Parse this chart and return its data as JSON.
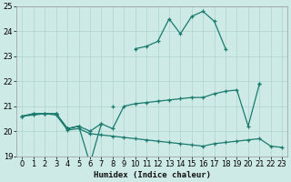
{
  "xlabel": "Humidex (Indice chaleur)",
  "x": [
    0,
    1,
    2,
    3,
    4,
    5,
    6,
    7,
    8,
    9,
    10,
    11,
    12,
    13,
    14,
    15,
    16,
    17,
    18,
    19,
    20,
    21,
    22,
    23
  ],
  "line_top": [
    20.6,
    20.7,
    20.7,
    20.7,
    20.1,
    20.2,
    null,
    null,
    21.0,
    null,
    23.3,
    23.4,
    23.6,
    24.5,
    23.9,
    24.6,
    24.8,
    24.4,
    23.3,
    null,
    null,
    21.9,
    null,
    null
  ],
  "line_mid": [
    20.6,
    20.7,
    20.7,
    20.7,
    20.1,
    20.2,
    20.0,
    20.3,
    20.1,
    21.0,
    21.1,
    21.15,
    21.2,
    21.25,
    21.3,
    21.35,
    21.35,
    21.5,
    21.6,
    21.65,
    20.2,
    21.9,
    null,
    null
  ],
  "line_bot": [
    20.6,
    20.65,
    20.7,
    20.65,
    20.05,
    20.1,
    19.9,
    19.85,
    19.8,
    19.75,
    19.7,
    19.65,
    19.6,
    19.55,
    19.5,
    19.45,
    19.4,
    19.5,
    19.55,
    19.6,
    19.65,
    19.7,
    19.4,
    19.35
  ],
  "line_dip": [
    null,
    null,
    null,
    20.7,
    20.1,
    20.2,
    18.7,
    20.3,
    null,
    null,
    null,
    null,
    null,
    null,
    null,
    null,
    null,
    null,
    null,
    null,
    null,
    null,
    null,
    null
  ],
  "ylim": [
    19,
    25
  ],
  "xlim": [
    -0.5,
    23.5
  ],
  "yticks": [
    19,
    20,
    21,
    22,
    23,
    24,
    25
  ],
  "xticks": [
    0,
    1,
    2,
    3,
    4,
    5,
    6,
    7,
    8,
    9,
    10,
    11,
    12,
    13,
    14,
    15,
    16,
    17,
    18,
    19,
    20,
    21,
    22,
    23
  ],
  "line_color": "#1a7a6e",
  "bg_color": "#ceeae6",
  "grid_color": "#aed4d0"
}
